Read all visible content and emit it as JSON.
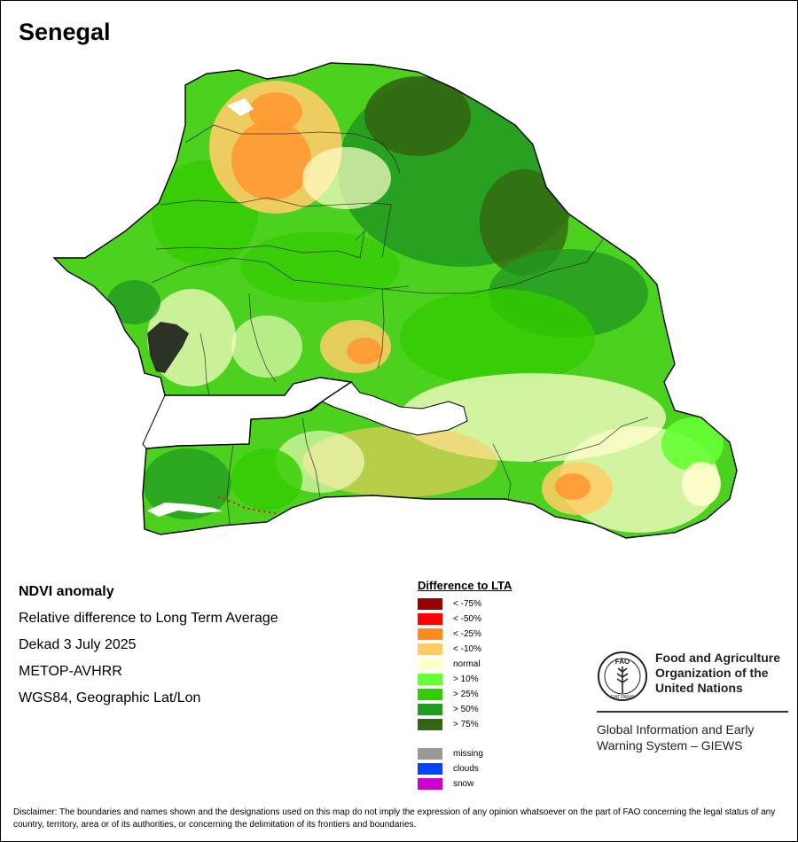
{
  "map": {
    "title": "Senegal"
  },
  "info": {
    "heading": "NDVI anomaly",
    "line1": "Relative difference to Long Term Average",
    "line2": "Dekad 3 July 2025",
    "line3": "METOP-AVHRR",
    "line4": "WGS84, Geographic Lat/Lon"
  },
  "legend": {
    "title": "Difference to LTA",
    "items": [
      {
        "label": "< -75%",
        "color": "#990000"
      },
      {
        "label": "< -50%",
        "color": "#ff0000"
      },
      {
        "label": "< -25%",
        "color": "#ff8c1a"
      },
      {
        "label": "< -10%",
        "color": "#ffcc66"
      },
      {
        "label": "normal",
        "color": "#ffffcc"
      },
      {
        "label": "> 10%",
        "color": "#66ff33"
      },
      {
        "label": "> 25%",
        "color": "#33cc00"
      },
      {
        "label": "> 50%",
        "color": "#229922"
      },
      {
        "label": "> 75%",
        "color": "#336611"
      }
    ],
    "extra": [
      {
        "label": "missing",
        "color": "#999999"
      },
      {
        "label": "clouds",
        "color": "#0044ff"
      },
      {
        "label": "snow",
        "color": "#cc00cc"
      }
    ]
  },
  "org": {
    "name_line1": "Food and Agriculture",
    "name_line2": "Organization of the",
    "name_line3": "United Nations",
    "system_line1": "Global Information and Early",
    "system_line2": "Warning System – GIEWS",
    "emblem_top": "FAO",
    "emblem_bottom": "FIAT PANIS"
  },
  "disclaimer": "Disclaimer: The boundaries and names shown and the designations used on this map do not imply the expression of any opinion whatsoever on the part of FAO concerning the legal status of any country, territory, area or of its authorities, or concerning the delimitation of its frontiers and boundaries."
}
